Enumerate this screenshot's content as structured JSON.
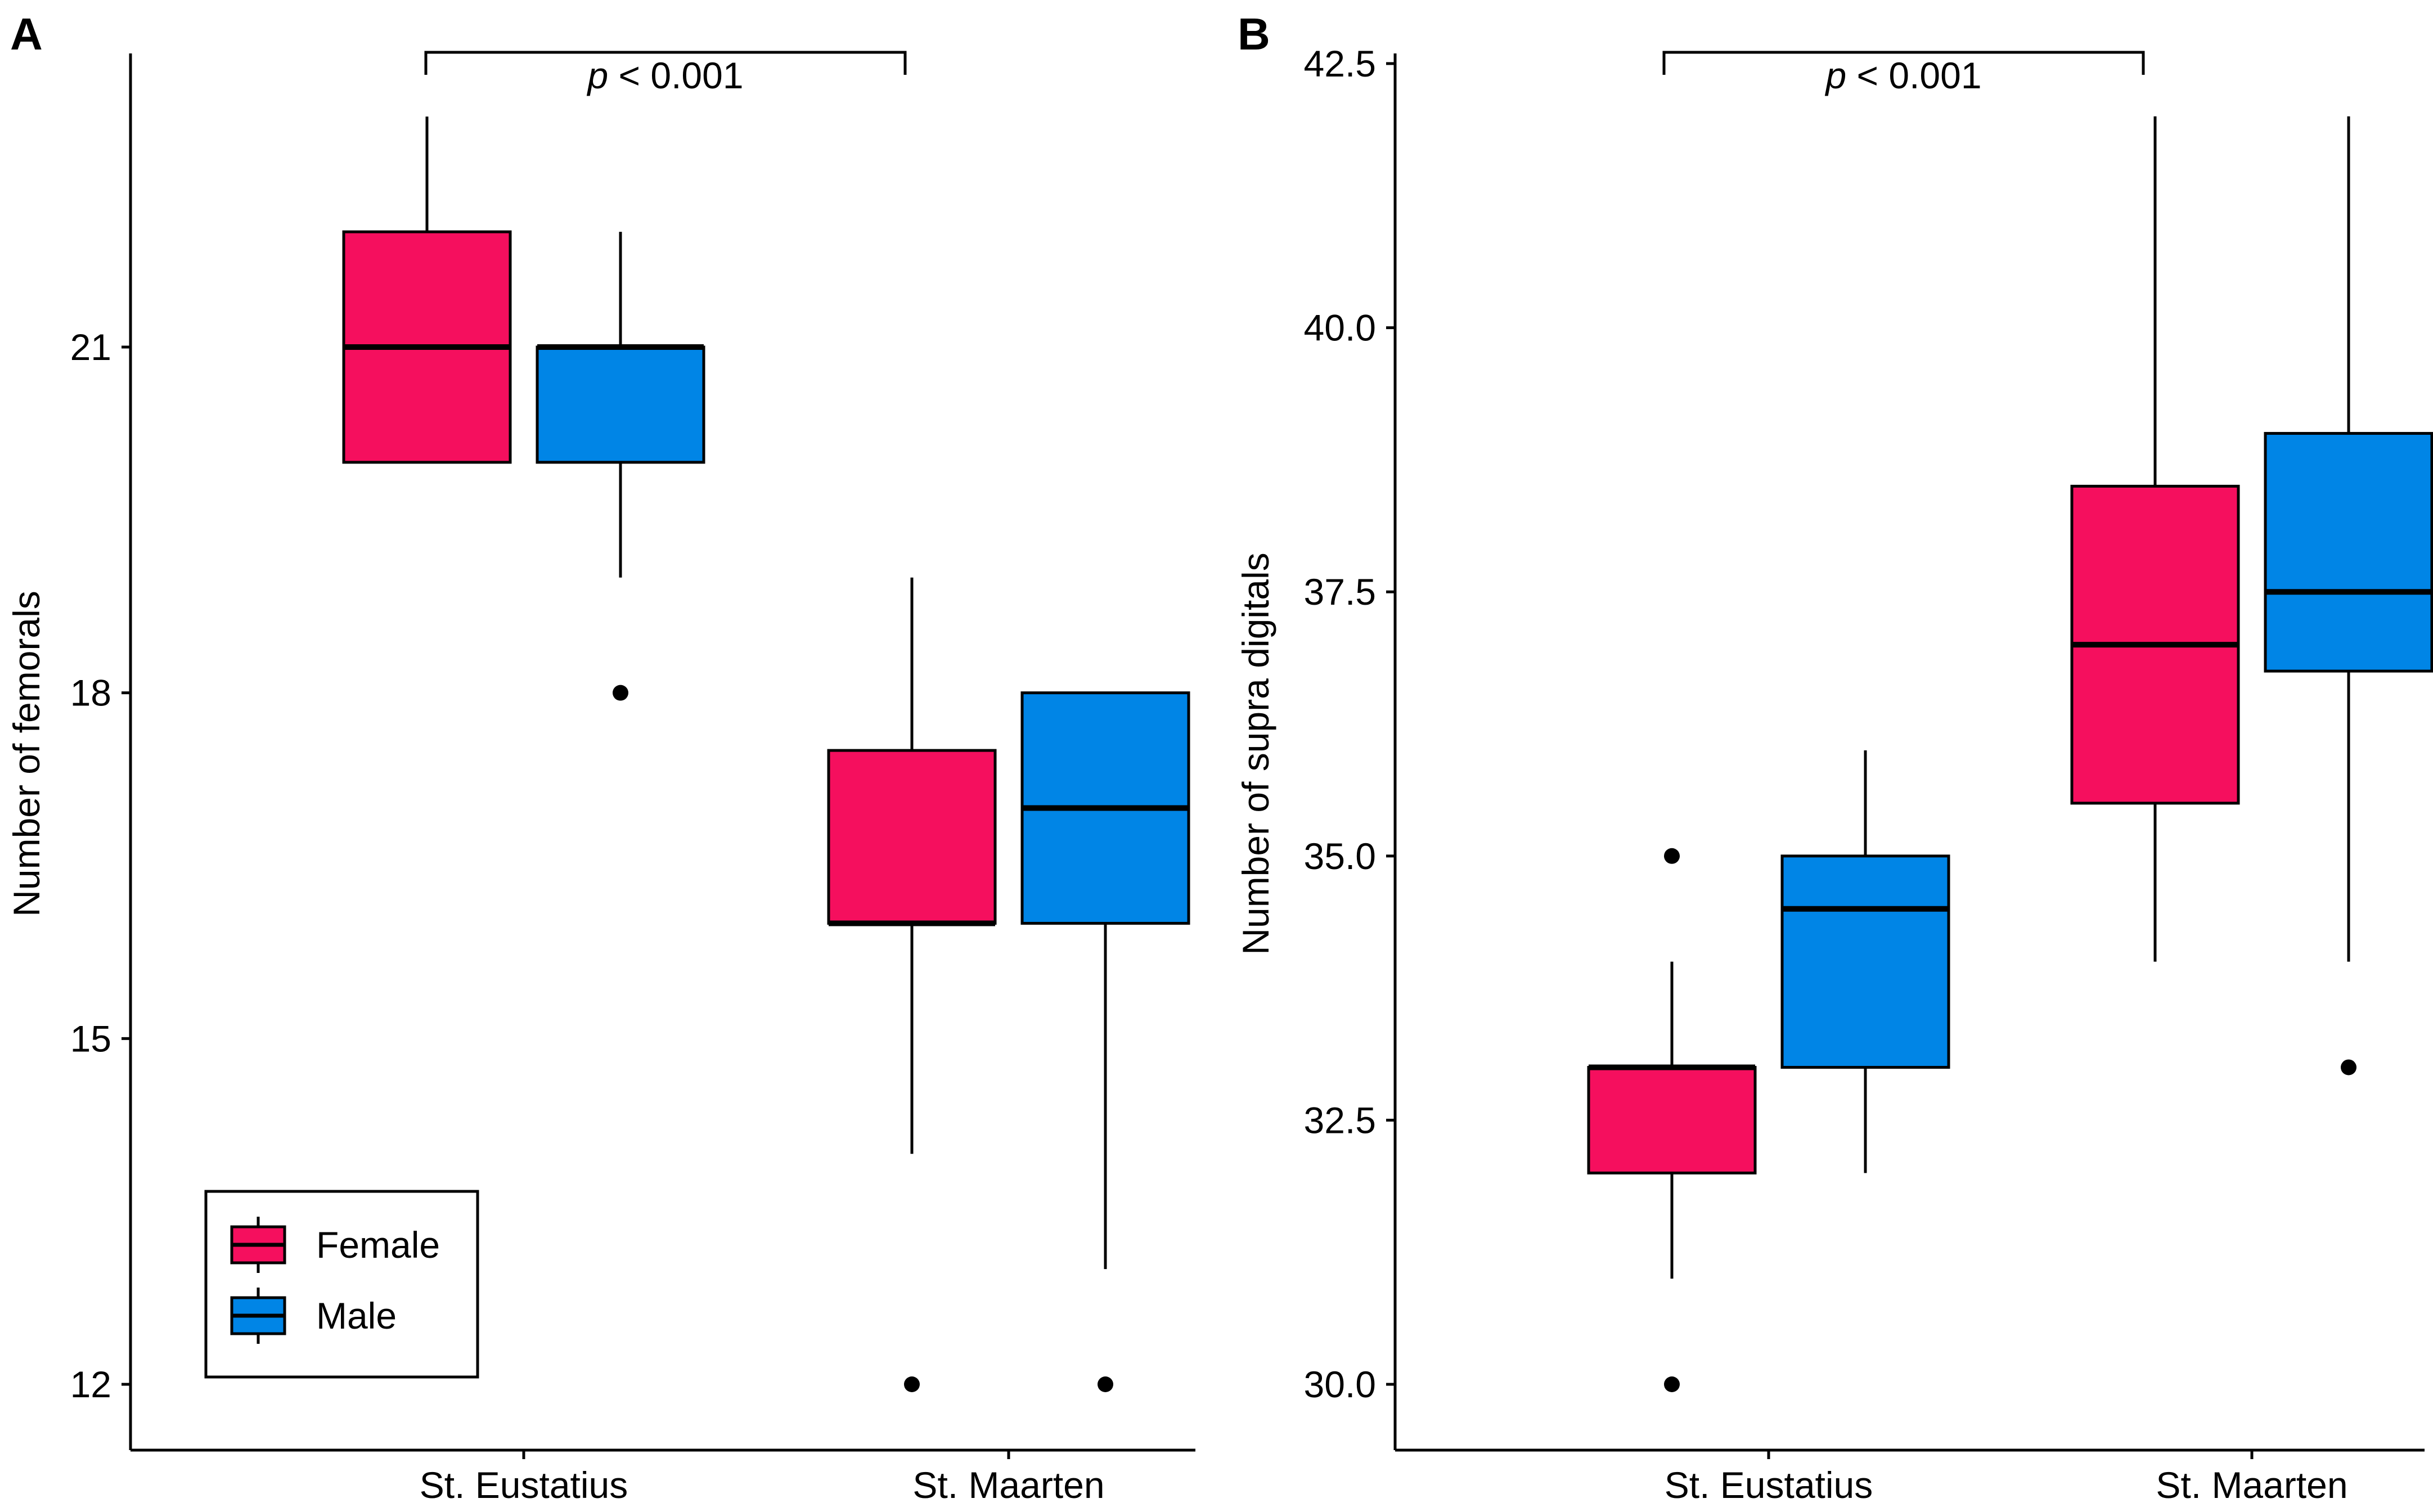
{
  "chart_data": [
    {
      "type": "boxplot",
      "panel_label": "A",
      "title": "",
      "xlabel": "",
      "ylabel": "Number of femorals",
      "categories": [
        "St. Eustatius",
        "St. Maarten"
      ],
      "ylim": [
        11.7,
        23.5
      ],
      "yticks": [
        12,
        15,
        18,
        21
      ],
      "ytick_labels": [
        "12",
        "15",
        "18",
        "21"
      ],
      "series": [
        {
          "name": "Female",
          "color": "#f50f5e",
          "boxes": [
            {
              "category": "St. Eustatius",
              "whisker_low": 20,
              "q1": 20,
              "median": 21,
              "q3": 22,
              "whisker_high": 23,
              "outliers": []
            },
            {
              "category": "St. Maarten",
              "whisker_low": 14,
              "q1": 16,
              "median": 16,
              "q3": 17.5,
              "whisker_high": 19,
              "outliers": [
                12
              ]
            }
          ]
        },
        {
          "name": "Male",
          "color": "#0085e6",
          "boxes": [
            {
              "category": "St. Eustatius",
              "whisker_low": 19,
              "q1": 20,
              "median": 21,
              "q3": 21,
              "whisker_high": 22,
              "outliers": [
                18
              ]
            },
            {
              "category": "St. Maarten",
              "whisker_low": 13,
              "q1": 16,
              "median": 17,
              "q3": 18,
              "whisker_high": 18,
              "outliers": [
                12
              ]
            }
          ]
        }
      ],
      "annotation": {
        "text_italic": "p",
        "text_rest": " < 0.001",
        "between": [
          "St. Eustatius",
          "St. Maarten"
        ]
      },
      "legend": {
        "position": "bottom-left",
        "entries": [
          "Female",
          "Male"
        ]
      }
    },
    {
      "type": "boxplot",
      "panel_label": "B",
      "title": "",
      "xlabel": "",
      "ylabel": "Number of supra digitals",
      "categories": [
        "St. Eustatius",
        "St. Maarten"
      ],
      "ylim": [
        29.4,
        42.6
      ],
      "yticks": [
        30.0,
        32.5,
        35.0,
        37.5,
        40.0,
        42.5
      ],
      "ytick_labels": [
        "30.0",
        "32.5",
        "35.0",
        "37.5",
        "40.0",
        "42.5"
      ],
      "series": [
        {
          "name": "Female",
          "color": "#f50f5e",
          "boxes": [
            {
              "category": "St. Eustatius",
              "whisker_low": 31,
              "q1": 32,
              "median": 33,
              "q3": 33,
              "whisker_high": 34,
              "outliers": [
                35,
                30
              ]
            },
            {
              "category": "St. Maarten",
              "whisker_low": 34,
              "q1": 35.5,
              "median": 37,
              "q3": 38.5,
              "whisker_high": 42,
              "outliers": []
            }
          ]
        },
        {
          "name": "Male",
          "color": "#0085e6",
          "boxes": [
            {
              "category": "St. Eustatius",
              "whisker_low": 32,
              "q1": 33,
              "median": 34.5,
              "q3": 35,
              "whisker_high": 36,
              "outliers": []
            },
            {
              "category": "St. Maarten",
              "whisker_low": 34,
              "q1": 36.75,
              "median": 37.5,
              "q3": 39,
              "whisker_high": 42,
              "outliers": [
                33
              ]
            }
          ]
        }
      ],
      "annotation": {
        "text_italic": "p",
        "text_rest": " < 0.001",
        "between": [
          "St. Eustatius",
          "St. Maarten"
        ]
      },
      "legend": null
    }
  ]
}
